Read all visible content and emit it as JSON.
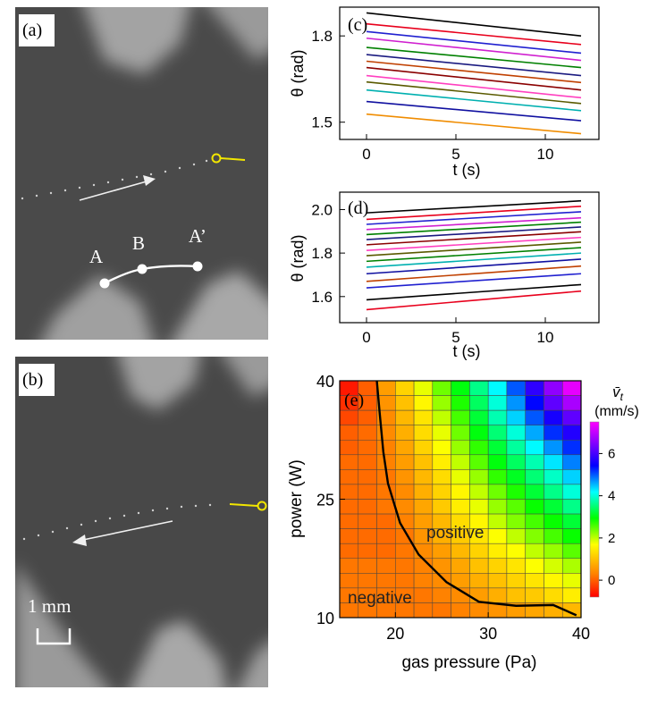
{
  "panel_a": {
    "label": "(a)",
    "points": [
      "A",
      "B",
      "A’"
    ]
  },
  "panel_b": {
    "label": "(b)",
    "scale_text": "1 mm"
  },
  "colors": {
    "background_dark": "#4a4a4a",
    "teeth_light": "#a8a8a8",
    "marker_yellow": "#f2e600",
    "markers_white": "#ffffff"
  },
  "chart_data": [
    {
      "id": "c",
      "type": "line",
      "label": "(c)",
      "xlabel": "t (s)",
      "ylabel": "θ (rad)",
      "xlim": [
        -1.5,
        13
      ],
      "ylim": [
        1.44,
        1.9
      ],
      "xticks": [
        "0",
        "5",
        "10"
      ],
      "yticks": [
        "1.5",
        "1.8"
      ],
      "x": [
        0,
        12
      ],
      "series": [
        {
          "color": "#000000",
          "values": [
            1.88,
            1.8
          ]
        },
        {
          "color": "#e8001c",
          "values": [
            1.842,
            1.77
          ]
        },
        {
          "color": "#2020d0",
          "values": [
            1.815,
            1.74
          ]
        },
        {
          "color": "#d020d0",
          "values": [
            1.792,
            1.715
          ]
        },
        {
          "color": "#008000",
          "values": [
            1.76,
            1.69
          ]
        },
        {
          "color": "#1a1a80",
          "values": [
            1.735,
            1.662
          ]
        },
        {
          "color": "#c04000",
          "values": [
            1.712,
            1.638
          ]
        },
        {
          "color": "#8a0000",
          "values": [
            1.69,
            1.612
          ]
        },
        {
          "color": "#ff40c0",
          "values": [
            1.662,
            1.585
          ]
        },
        {
          "color": "#5a5a00",
          "values": [
            1.64,
            1.565
          ]
        },
        {
          "color": "#00b0b0",
          "values": [
            1.612,
            1.54
          ]
        },
        {
          "color": "#1010a0",
          "values": [
            1.572,
            1.505
          ]
        },
        {
          "color": "#f08c00",
          "values": [
            1.528,
            1.46
          ]
        }
      ]
    },
    {
      "id": "d",
      "type": "line",
      "label": "(d)",
      "xlabel": "t (s)",
      "ylabel": "θ (rad)",
      "xlim": [
        -1.5,
        13
      ],
      "ylim": [
        1.48,
        2.08
      ],
      "xticks": [
        "0",
        "5",
        "10"
      ],
      "yticks": [
        "1.6",
        "1.8",
        "2.0"
      ],
      "x": [
        0,
        12
      ],
      "series": [
        {
          "color": "#000000",
          "values": [
            1.985,
            2.04
          ]
        },
        {
          "color": "#e8001c",
          "values": [
            1.955,
            2.015
          ]
        },
        {
          "color": "#2020d0",
          "values": [
            1.932,
            1.99
          ]
        },
        {
          "color": "#d020d0",
          "values": [
            1.908,
            1.962
          ]
        },
        {
          "color": "#008000",
          "values": [
            1.885,
            1.942
          ]
        },
        {
          "color": "#1a1a80",
          "values": [
            1.862,
            1.92
          ]
        },
        {
          "color": "#8a0000",
          "values": [
            1.838,
            1.898
          ]
        },
        {
          "color": "#ff40c0",
          "values": [
            1.812,
            1.872
          ]
        },
        {
          "color": "#5a5a00",
          "values": [
            1.788,
            1.85
          ]
        },
        {
          "color": "#008000",
          "values": [
            1.762,
            1.825
          ]
        },
        {
          "color": "#00b0b0",
          "values": [
            1.735,
            1.8
          ]
        },
        {
          "color": "#1010a0",
          "values": [
            1.705,
            1.772
          ]
        },
        {
          "color": "#c04000",
          "values": [
            1.67,
            1.74
          ]
        },
        {
          "color": "#2020d0",
          "values": [
            1.64,
            1.705
          ]
        },
        {
          "color": "#000000",
          "values": [
            1.585,
            1.655
          ]
        },
        {
          "color": "#e8001c",
          "values": [
            1.54,
            1.625
          ]
        }
      ]
    },
    {
      "id": "e",
      "type": "heatmap",
      "label": "(e)",
      "xlabel": "gas pressure (Pa)",
      "ylabel": "power (W)",
      "xticks": [
        "20",
        "30",
        "40"
      ],
      "yticks": [
        "10",
        "25",
        "40"
      ],
      "colorbar_title_sym": "v̄",
      "colorbar_title_sub": "t",
      "colorbar_unit": "(mm/s)",
      "colorbar_ticks": [
        "0",
        "2",
        "4",
        "6"
      ],
      "colorbar_range": [
        -0.8,
        7.5
      ],
      "region_labels": [
        "positive",
        "negative"
      ],
      "xlim": [
        14,
        40
      ],
      "ylim": [
        10,
        40
      ],
      "boundary": [
        [
          18.0,
          40
        ],
        [
          18.3,
          36
        ],
        [
          18.7,
          31
        ],
        [
          19.2,
          27
        ],
        [
          20.5,
          22
        ],
        [
          22.5,
          18
        ],
        [
          25.5,
          14.5
        ],
        [
          29,
          12
        ],
        [
          33,
          11.5
        ],
        [
          37,
          11.6
        ],
        [
          39.5,
          10.3
        ]
      ],
      "values": [
        [
          -0.6,
          0.0,
          0.6,
          1.2,
          1.8,
          2.4,
          3.0,
          3.6,
          4.2,
          5.0,
          5.8,
          6.6,
          7.3
        ],
        [
          -0.4,
          0.0,
          0.5,
          1.0,
          1.6,
          2.2,
          2.8,
          3.4,
          4.0,
          4.7,
          5.4,
          6.2,
          6.8
        ],
        [
          -0.2,
          0.0,
          0.4,
          0.9,
          1.4,
          2.0,
          2.6,
          3.2,
          3.8,
          4.4,
          5.0,
          5.6,
          6.2
        ],
        [
          0.0,
          0.1,
          0.4,
          0.8,
          1.3,
          1.8,
          2.4,
          3.0,
          3.5,
          4.0,
          4.6,
          5.2,
          5.7
        ],
        [
          0.0,
          0.1,
          0.3,
          0.7,
          1.2,
          1.7,
          2.2,
          2.7,
          3.2,
          3.7,
          4.2,
          4.7,
          5.2
        ],
        [
          0.1,
          0.1,
          0.3,
          0.6,
          1.0,
          1.5,
          2.0,
          2.5,
          3.0,
          3.4,
          3.8,
          4.3,
          4.8
        ],
        [
          0.1,
          0.1,
          0.2,
          0.5,
          0.9,
          1.3,
          1.8,
          2.2,
          2.7,
          3.1,
          3.5,
          3.9,
          4.4
        ],
        [
          0.1,
          0.1,
          0.2,
          0.4,
          0.8,
          1.2,
          1.6,
          2.0,
          2.4,
          2.8,
          3.2,
          3.6,
          4.0
        ],
        [
          0.1,
          0.1,
          0.2,
          0.4,
          0.7,
          1.1,
          1.5,
          1.8,
          2.2,
          2.5,
          2.9,
          3.2,
          3.6
        ],
        [
          0.1,
          0.1,
          0.1,
          0.3,
          0.6,
          0.9,
          1.3,
          1.6,
          2.0,
          2.3,
          2.6,
          2.9,
          3.2
        ],
        [
          0.1,
          0.1,
          0.1,
          0.2,
          0.5,
          0.8,
          1.1,
          1.4,
          1.7,
          2.0,
          2.3,
          2.6,
          2.9
        ],
        [
          0.1,
          0.1,
          0.1,
          0.2,
          0.4,
          0.6,
          0.9,
          1.2,
          1.5,
          1.7,
          2.0,
          2.2,
          2.5
        ],
        [
          0.2,
          0.2,
          0.2,
          0.2,
          0.3,
          0.5,
          0.7,
          1.0,
          1.2,
          1.4,
          1.7,
          1.9,
          2.1
        ],
        [
          0.2,
          0.2,
          0.2,
          0.2,
          0.3,
          0.4,
          0.6,
          0.8,
          1.0,
          1.2,
          1.4,
          1.6,
          1.8
        ],
        [
          0.2,
          0.2,
          0.2,
          0.2,
          0.2,
          0.3,
          0.4,
          0.6,
          0.8,
          1.0,
          1.1,
          1.3,
          1.5
        ],
        [
          0.2,
          0.2,
          0.2,
          0.2,
          0.2,
          0.2,
          0.3,
          0.4,
          0.5,
          0.6,
          0.7,
          0.8,
          0.9
        ]
      ]
    }
  ]
}
